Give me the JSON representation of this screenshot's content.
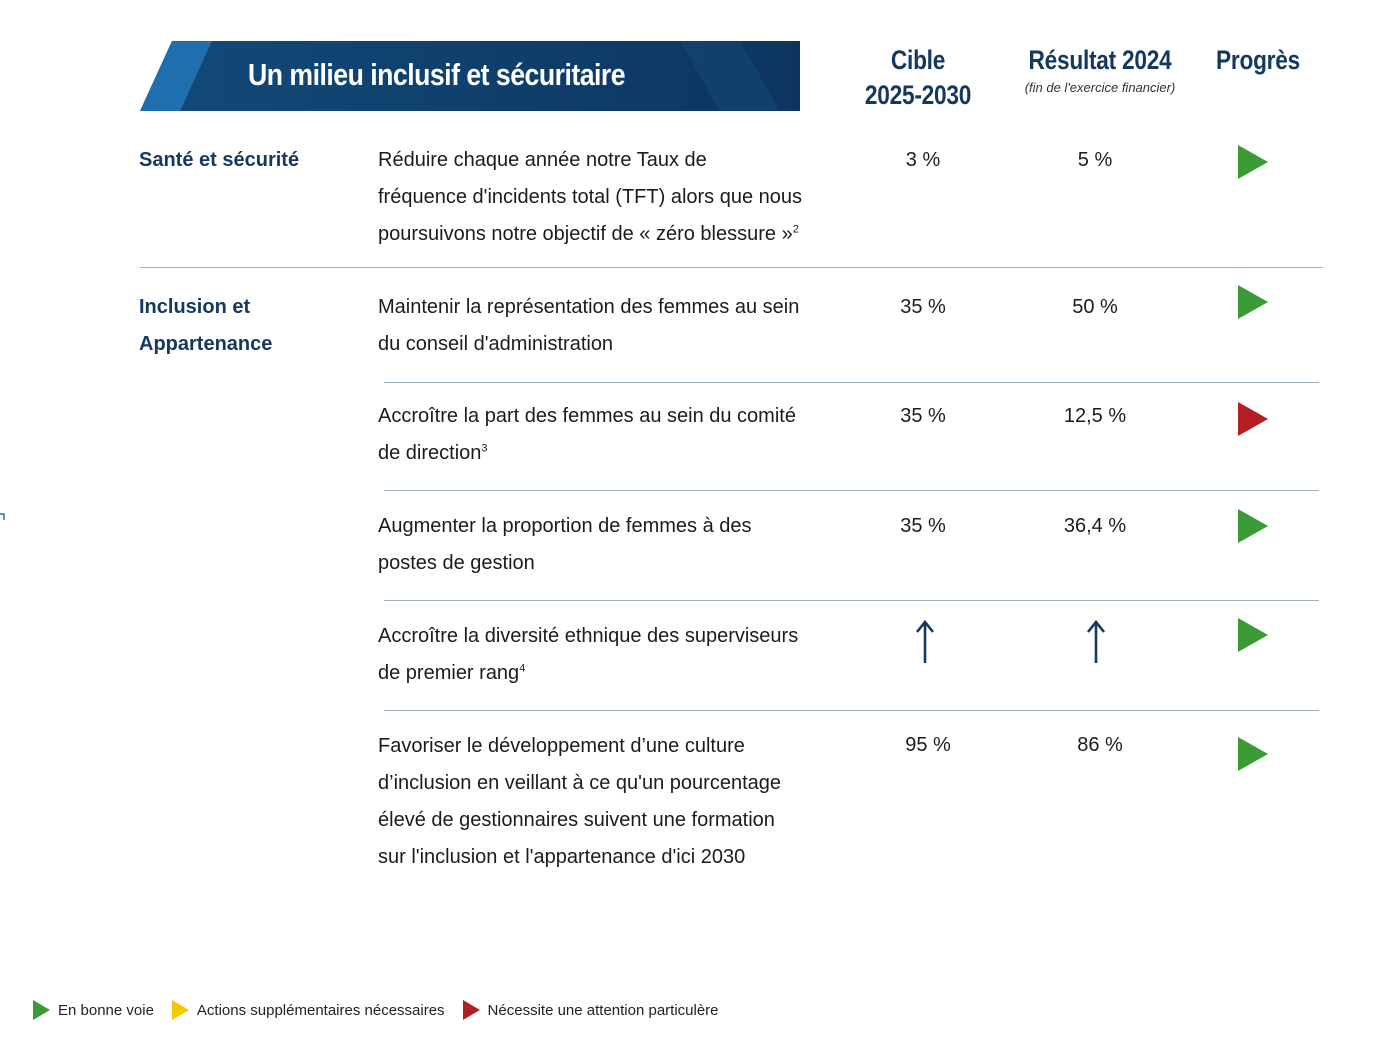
{
  "banner": {
    "title": "Un milieu inclusif et sécuritaire"
  },
  "headers": {
    "target_line1": "Cible",
    "target_line2": "2025-2030",
    "result": "Résultat 2024",
    "result_sub": "(fin de l'exercice financier)",
    "progress": "Progrès"
  },
  "categories": [
    {
      "label": "Santé et sécurité"
    },
    {
      "label_line1": "Inclusion et",
      "label_line2": "Appartenance"
    }
  ],
  "rows": [
    {
      "lines": [
        "Réduire chaque année notre Taux de",
        "fréquence d'incidents total (TFT) alors que nous",
        "poursuivons notre objectif de « zéro blessure »"
      ],
      "footnote": "2",
      "target": "3 %",
      "result": "5 %",
      "status": "green"
    },
    {
      "lines": [
        "Maintenir la représentation des femmes au sein",
        "du conseil d'administration"
      ],
      "footnote": "",
      "target": "35 %",
      "result": "50 %",
      "status": "green"
    },
    {
      "lines": [
        "Accroître la part des femmes au sein du comité",
        "de direction"
      ],
      "footnote": "3",
      "target": "35 %",
      "result": "12,5 %",
      "status": "red"
    },
    {
      "lines": [
        "Augmenter la proportion de femmes à des",
        "postes de gestion"
      ],
      "footnote": "",
      "target": "35 %",
      "result": "36,4 %",
      "status": "green"
    },
    {
      "lines": [
        "Accroître la diversité ethnique des superviseurs",
        "de premier rang"
      ],
      "footnote": "4",
      "target_icon": "up-arrow-icon",
      "result_icon": "up-arrow-icon",
      "status": "green"
    },
    {
      "lines": [
        "Favoriser le développement d’une culture",
        "d’inclusion en veillant à ce qu'un pourcentage",
        "élevé de gestionnaires suivent une formation",
        "sur l'inclusion et l'appartenance d'ici 2030"
      ],
      "footnote": "",
      "target": "95 %",
      "result": "86 %",
      "status": "green"
    }
  ],
  "legend": [
    {
      "color": "green",
      "label": "En bonne voie"
    },
    {
      "color": "yellow",
      "label": "Actions supplémentaires nécessaires"
    },
    {
      "color": "red",
      "label": "Nécessite une attention particulère"
    }
  ],
  "colors": {
    "navy": "#14385e",
    "banner_dark": "#0d3a63",
    "banner_light": "#1f6fae",
    "status_green": "#3a9b35",
    "status_red": "#b21e23",
    "status_yellow": "#f5c800",
    "rule": "#9fb0bd"
  }
}
